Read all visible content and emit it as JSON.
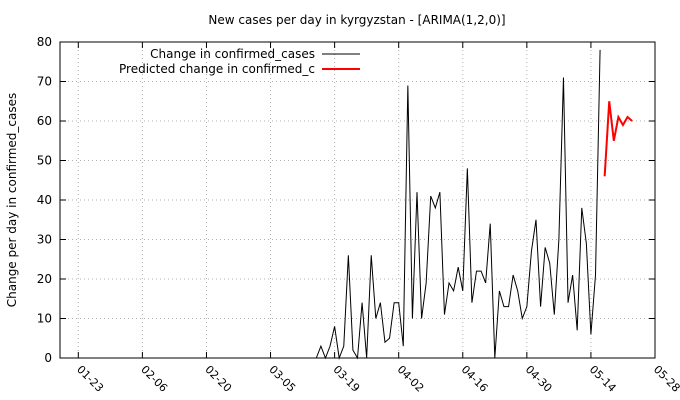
{
  "chart_data": {
    "type": "line",
    "title": "New cases per day in kyrgyzstan -  [ARIMA(1,2,0)]",
    "xlabel": "",
    "ylabel": "Change per day in confirmed_cases",
    "ylim": [
      0,
      80
    ],
    "yticks": [
      0,
      10,
      20,
      30,
      40,
      50,
      60,
      70,
      80
    ],
    "xlim": [
      "2020-01-19",
      "2020-05-28"
    ],
    "xticks": [
      "2020-01-23",
      "2020-02-06",
      "2020-02-20",
      "2020-03-05",
      "2020-03-19",
      "2020-04-02",
      "2020-04-16",
      "2020-04-30",
      "2020-05-14",
      "2020-05-28"
    ],
    "xtick_labels": [
      "01-23",
      "02-06",
      "02-20",
      "03-05",
      "03-19",
      "04-02",
      "04-16",
      "04-30",
      "05-14",
      "05-28"
    ],
    "grid": true,
    "legend_position": "top-left",
    "series": [
      {
        "name": "Change in confirmed_cases",
        "color": "#000000",
        "points": [
          [
            "2020-03-15",
            0
          ],
          [
            "2020-03-16",
            3
          ],
          [
            "2020-03-17",
            0
          ],
          [
            "2020-03-18",
            3
          ],
          [
            "2020-03-19",
            8
          ],
          [
            "2020-03-20",
            0
          ],
          [
            "2020-03-21",
            3
          ],
          [
            "2020-03-22",
            26
          ],
          [
            "2020-03-23",
            2
          ],
          [
            "2020-03-24",
            0
          ],
          [
            "2020-03-25",
            14
          ],
          [
            "2020-03-26",
            0
          ],
          [
            "2020-03-27",
            26
          ],
          [
            "2020-03-28",
            10
          ],
          [
            "2020-03-29",
            14
          ],
          [
            "2020-03-30",
            4
          ],
          [
            "2020-03-31",
            5
          ],
          [
            "2020-04-01",
            14
          ],
          [
            "2020-04-02",
            14
          ],
          [
            "2020-04-03",
            3
          ],
          [
            "2020-04-04",
            69
          ],
          [
            "2020-04-05",
            10
          ],
          [
            "2020-04-06",
            42
          ],
          [
            "2020-04-07",
            10
          ],
          [
            "2020-04-08",
            19
          ],
          [
            "2020-04-09",
            41
          ],
          [
            "2020-04-10",
            38
          ],
          [
            "2020-04-11",
            42
          ],
          [
            "2020-04-12",
            11
          ],
          [
            "2020-04-13",
            19
          ],
          [
            "2020-04-14",
            17
          ],
          [
            "2020-04-15",
            23
          ],
          [
            "2020-04-16",
            17
          ],
          [
            "2020-04-17",
            48
          ],
          [
            "2020-04-18",
            14
          ],
          [
            "2020-04-19",
            22
          ],
          [
            "2020-04-20",
            22
          ],
          [
            "2020-04-21",
            19
          ],
          [
            "2020-04-22",
            34
          ],
          [
            "2020-04-23",
            0
          ],
          [
            "2020-04-24",
            17
          ],
          [
            "2020-04-25",
            13
          ],
          [
            "2020-04-26",
            13
          ],
          [
            "2020-04-27",
            21
          ],
          [
            "2020-04-28",
            17
          ],
          [
            "2020-04-29",
            10
          ],
          [
            "2020-04-30",
            13
          ],
          [
            "2020-05-01",
            27
          ],
          [
            "2020-05-02",
            35
          ],
          [
            "2020-05-03",
            13
          ],
          [
            "2020-05-04",
            28
          ],
          [
            "2020-05-05",
            24
          ],
          [
            "2020-05-06",
            11
          ],
          [
            "2020-05-07",
            30
          ],
          [
            "2020-05-08",
            71
          ],
          [
            "2020-05-09",
            14
          ],
          [
            "2020-05-10",
            21
          ],
          [
            "2020-05-11",
            7
          ],
          [
            "2020-05-12",
            38
          ],
          [
            "2020-05-13",
            29
          ],
          [
            "2020-05-14",
            6
          ],
          [
            "2020-05-15",
            21
          ],
          [
            "2020-05-16",
            78
          ]
        ]
      },
      {
        "name": "Predicted change in confirmed_c",
        "color": "#ff0000",
        "points": [
          [
            "2020-05-17",
            46
          ],
          [
            "2020-05-18",
            65
          ],
          [
            "2020-05-19",
            55
          ],
          [
            "2020-05-20",
            61
          ],
          [
            "2020-05-21",
            59
          ],
          [
            "2020-05-22",
            61
          ],
          [
            "2020-05-23",
            60
          ]
        ]
      }
    ]
  }
}
